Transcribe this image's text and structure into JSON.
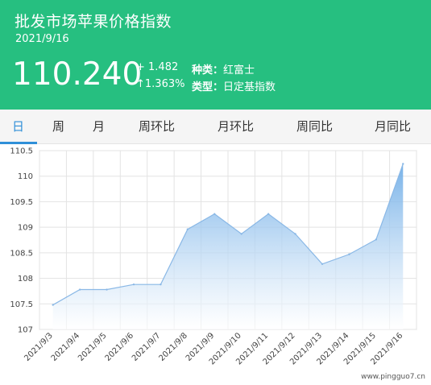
{
  "header": {
    "title": "批发市场苹果价格指数",
    "date": "2021/9/16",
    "price": "110.240",
    "change_abs": "+ 1.482",
    "change_pct": "↑1.363%",
    "variety_label": "种类：",
    "variety_value": "红富士",
    "type_label": "类型：",
    "type_value": "日定基指数"
  },
  "tabs": [
    {
      "label": "日",
      "active": true
    },
    {
      "label": "周",
      "active": false
    },
    {
      "label": "月",
      "active": false
    },
    {
      "label": "周环比",
      "active": false
    },
    {
      "label": "月环比",
      "active": false
    },
    {
      "label": "周同比",
      "active": false
    },
    {
      "label": "月同比",
      "active": false
    }
  ],
  "colors": {
    "header_bg": "#26bf80",
    "accent": "#2f8fd8",
    "line": "#8ab8e6"
  },
  "chart_data": {
    "type": "area",
    "categories": [
      "2021/9/3",
      "2021/9/4",
      "2021/9/5",
      "2021/9/6",
      "2021/9/7",
      "2021/9/8",
      "2021/9/9",
      "2021/9/10",
      "2021/9/11",
      "2021/9/12",
      "2021/9/13",
      "2021/9/14",
      "2021/9/15",
      "2021/9/16"
    ],
    "values": [
      107.48,
      107.78,
      107.78,
      107.88,
      107.88,
      108.96,
      109.26,
      108.87,
      109.26,
      108.87,
      108.28,
      108.47,
      108.76,
      110.24
    ],
    "ylim": [
      107,
      110.5
    ],
    "yticks": [
      "107",
      "107.5",
      "108",
      "108.5",
      "109",
      "109.5",
      "110",
      "110.5"
    ],
    "grid": true,
    "title": "",
    "xlabel": "",
    "ylabel": ""
  },
  "watermark": "www.pingguo7.cn"
}
